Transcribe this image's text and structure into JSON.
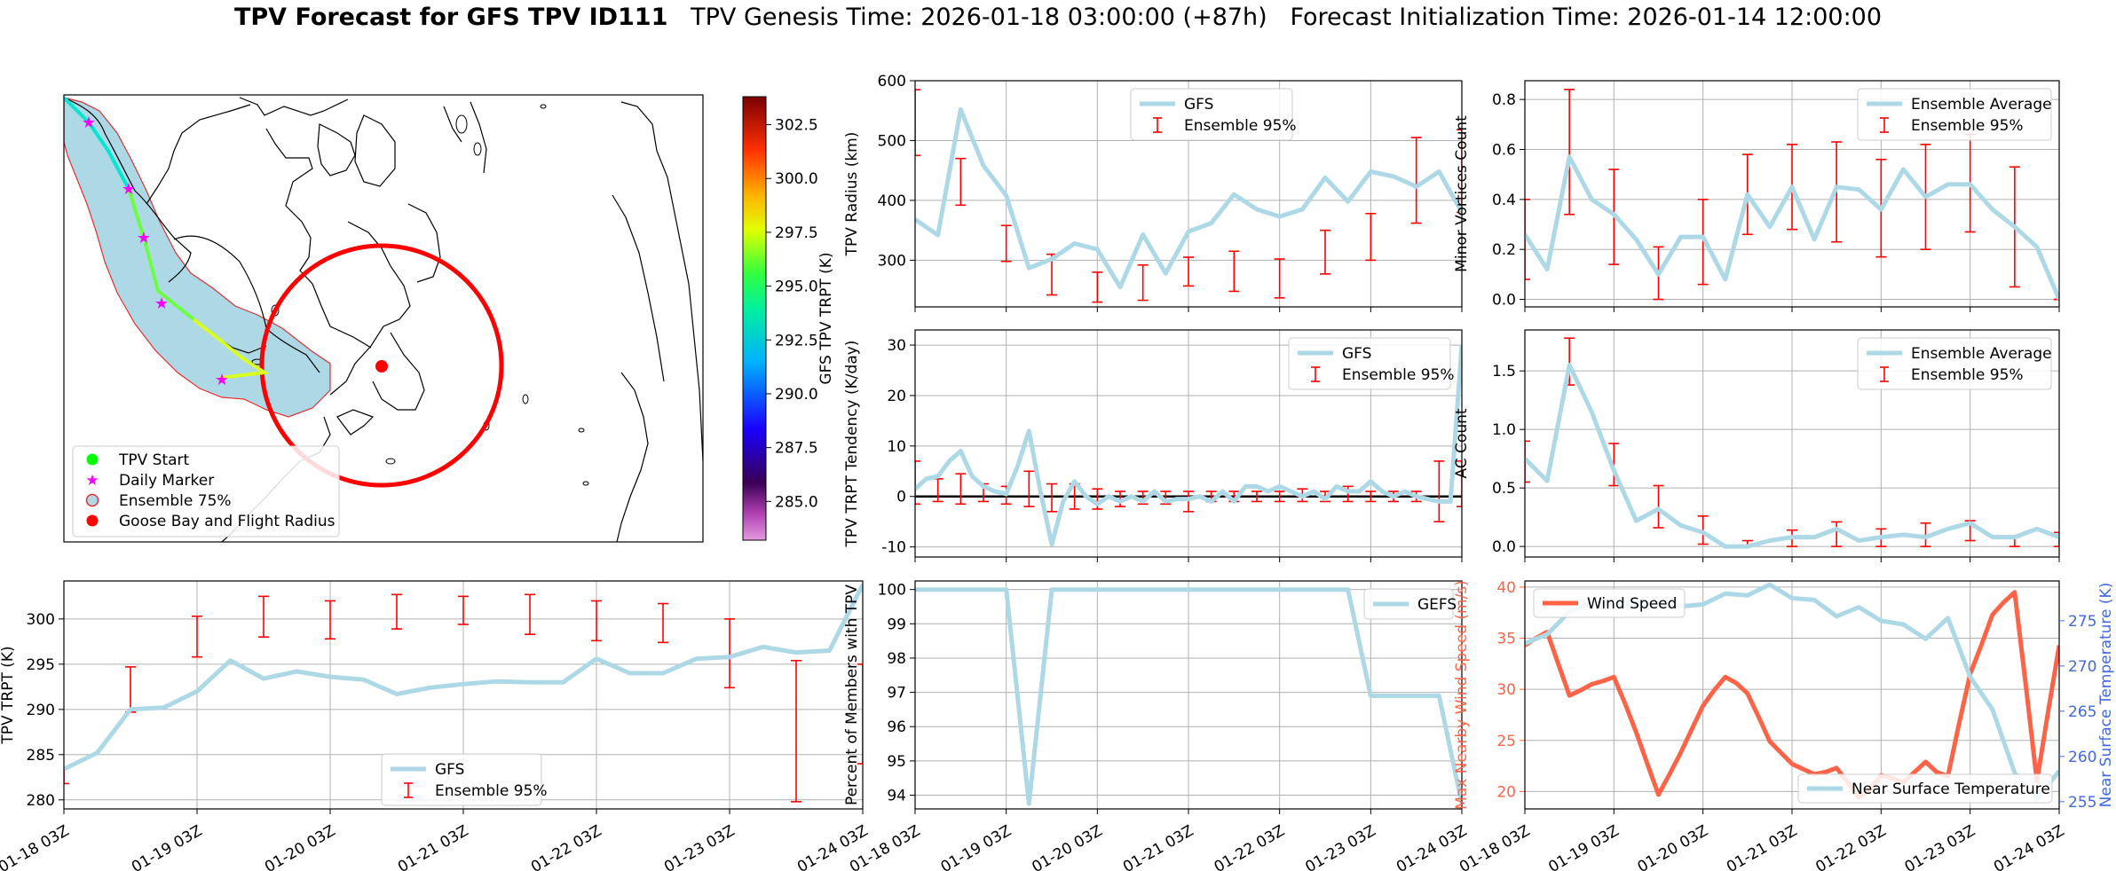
{
  "header": {
    "title_main": "TPV Forecast for GFS TPV ID111",
    "title_genesis": "TPV Genesis Time: 2026-01-18 03:00:00 (+87h)",
    "title_init": "Forecast Initialization Time: 2026-01-14 12:00:00"
  },
  "colors": {
    "gfs_line": "#add8e6",
    "ensemble_bar": "#ff0000",
    "wind_speed": "#ff6347",
    "near_surface": "#add8e6",
    "wind_axis": "#ff6347",
    "temp_axis": "#4169e1",
    "map_fill": "#add8e6",
    "map_edge": "#e33030"
  },
  "time_ticks": [
    "01-18 03Z",
    "01-19 03Z",
    "01-20 03Z",
    "01-21 03Z",
    "01-22 03Z",
    "01-23 03Z",
    "01-24 03Z"
  ],
  "map": {
    "colorbar_label": "GFS TPV TRPT (K)",
    "colorbar_ticks": [
      "302.5",
      "300.0",
      "297.5",
      "295.0",
      "292.5",
      "290.0",
      "287.5",
      "285.0"
    ],
    "legend": {
      "tpv_start": "TPV Start",
      "daily_marker": "Daily Marker",
      "ensemble_75": "Ensemble 75%",
      "goose_bay": "Goose Bay and Flight Radius"
    }
  },
  "chart_data": [
    {
      "id": "tpv_trpt",
      "type": "line",
      "ylabel": "TPV TRPT (K)",
      "xlim": [
        0,
        144
      ],
      "ylim": [
        279,
        304.2
      ],
      "yticks": [
        280,
        285,
        290,
        295,
        300
      ],
      "legend": [
        "GFS",
        "Ensemble 95%"
      ],
      "legend_loc": "lower-center",
      "series": [
        {
          "name": "GFS",
          "x": [
            0,
            6,
            12,
            18,
            24,
            30,
            36,
            42,
            48,
            54,
            60,
            66,
            72,
            78,
            84,
            90,
            96,
            102,
            108,
            114,
            120,
            126,
            132,
            138,
            144
          ],
          "y": [
            283.4,
            285.2,
            290.0,
            290.2,
            292.0,
            295.4,
            293.4,
            294.2,
            293.6,
            293.3,
            291.7,
            292.4,
            292.8,
            293.1,
            293.0,
            293.0,
            295.6,
            294.0,
            294.0,
            295.6,
            295.8,
            296.9,
            296.3,
            296.5,
            303.8
          ]
        }
      ],
      "error_bars": {
        "name": "Ensemble 95%",
        "x": [
          0,
          12,
          24,
          36,
          48,
          60,
          72,
          84,
          96,
          108,
          120,
          132,
          144
        ],
        "low": [
          281.8,
          289.7,
          295.8,
          298.0,
          297.8,
          298.9,
          299.4,
          298.3,
          297.6,
          297.4,
          292.4,
          279.8,
          284.0
        ],
        "high": [
          283.5,
          294.7,
          300.3,
          302.5,
          302.0,
          302.7,
          302.5,
          302.7,
          302.0,
          301.7,
          300.0,
          295.4,
          295.0
        ]
      }
    },
    {
      "id": "tpv_radius",
      "type": "line",
      "ylabel": "TPV Radius (km)",
      "xlim": [
        0,
        144
      ],
      "ylim": [
        222,
        600
      ],
      "yticks": [
        300,
        400,
        500,
        600
      ],
      "legend": [
        "GFS",
        "Ensemble 95%"
      ],
      "legend_loc": "upper-center",
      "series": [
        {
          "name": "GFS",
          "x": [
            0,
            6,
            12,
            18,
            24,
            30,
            36,
            42,
            48,
            54,
            60,
            66,
            72,
            78,
            84,
            90,
            96,
            102,
            108,
            114,
            120,
            126,
            132,
            138,
            144
          ],
          "y": [
            368,
            342,
            552,
            458,
            408,
            287,
            302,
            328,
            318,
            255,
            343,
            278,
            348,
            362,
            410,
            385,
            373,
            385,
            438,
            398,
            448,
            440,
            423,
            448,
            380
          ]
        }
      ],
      "error_bars": {
        "name": "Ensemble 95%",
        "x": [
          0,
          12,
          24,
          36,
          48,
          60,
          72,
          84,
          96,
          108,
          120,
          132,
          144
        ],
        "low": [
          475,
          392,
          298,
          242,
          230,
          233,
          257,
          248,
          237,
          277,
          300,
          362,
          380
        ],
        "high": [
          585,
          470,
          358,
          310,
          280,
          292,
          305,
          315,
          302,
          350,
          378,
          505,
          518
        ]
      }
    },
    {
      "id": "trpt_tendency",
      "type": "line",
      "ylabel": "TPV TRPT Tendency (K/day)",
      "xlim": [
        0,
        144
      ],
      "ylim": [
        -12,
        33
      ],
      "yticks": [
        -10,
        0,
        10,
        20,
        30
      ],
      "legend": [
        "GFS",
        "Ensemble 95%"
      ],
      "legend_loc": "upper-right",
      "series": [
        {
          "name": "GFS",
          "x": [
            0,
            3,
            6,
            9,
            12,
            15,
            18,
            21,
            24,
            27,
            30,
            33,
            36,
            39,
            42,
            45,
            48,
            51,
            54,
            57,
            60,
            63,
            66,
            69,
            72,
            75,
            78,
            81,
            84,
            87,
            90,
            93,
            96,
            99,
            102,
            105,
            108,
            111,
            114,
            117,
            120,
            123,
            126,
            129,
            132,
            135,
            138,
            141,
            144
          ],
          "y": [
            1.5,
            3.5,
            4,
            7,
            9,
            4,
            2,
            1,
            0.5,
            6,
            13,
            1,
            -9.5,
            -1,
            3,
            0,
            -1.5,
            0,
            -1,
            0,
            -1,
            1,
            -1,
            -0.5,
            -0.5,
            0,
            -1,
            1,
            -1,
            2,
            2,
            1,
            2,
            1,
            0,
            1,
            -0.5,
            2,
            1,
            1,
            3,
            1,
            0,
            1,
            0,
            -0.5,
            -1,
            -1,
            30
          ]
        }
      ],
      "zero_line": 0,
      "error_bars": {
        "name": "Ensemble 95%",
        "x": [
          0,
          6,
          12,
          18,
          24,
          30,
          36,
          42,
          48,
          54,
          60,
          66,
          72,
          78,
          84,
          90,
          96,
          102,
          108,
          114,
          120,
          126,
          132,
          138,
          144
        ],
        "low": [
          -1.5,
          -1,
          -1.5,
          -1,
          -1.5,
          -2,
          -3,
          -2.5,
          -2.5,
          -2,
          -1.5,
          -1.5,
          -3,
          -1,
          -1,
          -1,
          -1,
          -1,
          -1,
          -1,
          -1,
          -1,
          -1,
          -5,
          -2
        ],
        "high": [
          7,
          3.5,
          4.5,
          2.5,
          2,
          5,
          2.5,
          2.5,
          1.5,
          1,
          1,
          1,
          1,
          1,
          1,
          1,
          1,
          1.5,
          1,
          2,
          1,
          1,
          1,
          7,
          7
        ]
      }
    },
    {
      "id": "members_pct",
      "type": "line",
      "ylabel": "Percent of Members with TPV",
      "xlim": [
        0,
        144
      ],
      "ylim": [
        93.6,
        100.25
      ],
      "yticks": [
        94,
        95,
        96,
        97,
        98,
        99,
        100
      ],
      "legend": [
        "GEFS"
      ],
      "legend_loc": "upper-right",
      "series": [
        {
          "name": "GEFS",
          "x": [
            0,
            6,
            12,
            18,
            24,
            30,
            36,
            42,
            48,
            54,
            60,
            66,
            72,
            78,
            84,
            90,
            96,
            102,
            108,
            114,
            120,
            126,
            132,
            138,
            144
          ],
          "y": [
            100,
            100,
            100,
            100,
            100,
            93.75,
            100,
            100,
            100,
            100,
            100,
            100,
            100,
            100,
            100,
            100,
            100,
            100,
            100,
            100,
            96.9,
            96.9,
            96.9,
            96.9,
            93.75
          ]
        }
      ]
    },
    {
      "id": "minor_vortices",
      "type": "line",
      "ylabel": "Minor Vortices Count",
      "xlim": [
        0,
        144
      ],
      "ylim": [
        -0.03,
        0.875
      ],
      "yticks": [
        0.0,
        0.2,
        0.4,
        0.6,
        0.8
      ],
      "legend": [
        "Ensemble Average",
        "Ensemble 95%"
      ],
      "legend_loc": "upper-right",
      "series": [
        {
          "name": "Ensemble Average",
          "x": [
            0,
            6,
            12,
            18,
            24,
            30,
            36,
            42,
            48,
            54,
            60,
            66,
            72,
            78,
            84,
            90,
            96,
            102,
            108,
            114,
            120,
            126,
            132,
            138,
            144
          ],
          "y": [
            0.26,
            0.12,
            0.57,
            0.4,
            0.34,
            0.24,
            0.1,
            0.25,
            0.25,
            0.08,
            0.42,
            0.29,
            0.45,
            0.24,
            0.45,
            0.44,
            0.36,
            0.52,
            0.41,
            0.46,
            0.46,
            0.36,
            0.29,
            0.21,
            0.0
          ]
        }
      ],
      "error_bars": {
        "name": "Ensemble 95%",
        "x": [
          0,
          12,
          24,
          36,
          48,
          60,
          72,
          84,
          96,
          108,
          120,
          132,
          144
        ],
        "low": [
          0.08,
          0.34,
          0.14,
          0.0,
          0.06,
          0.26,
          0.28,
          0.23,
          0.17,
          0.2,
          0.27,
          0.05,
          0.0
        ],
        "high": [
          0.4,
          0.84,
          0.52,
          0.21,
          0.4,
          0.58,
          0.62,
          0.63,
          0.56,
          0.62,
          0.66,
          0.53,
          0.0
        ]
      }
    },
    {
      "id": "ac_count",
      "type": "line",
      "ylabel": "AC Count",
      "xlim": [
        0,
        144
      ],
      "ylim": [
        -0.09,
        1.85
      ],
      "yticks": [
        0.0,
        0.5,
        1.0,
        1.5
      ],
      "legend": [
        "Ensemble Average",
        "Ensemble 95%"
      ],
      "legend_loc": "upper-right",
      "series": [
        {
          "name": "Ensemble Average",
          "x": [
            0,
            6,
            12,
            18,
            24,
            30,
            36,
            42,
            48,
            54,
            60,
            66,
            72,
            78,
            84,
            90,
            96,
            102,
            108,
            114,
            120,
            126,
            132,
            138,
            144
          ],
          "y": [
            0.75,
            0.56,
            1.55,
            1.15,
            0.65,
            0.22,
            0.32,
            0.18,
            0.12,
            0.0,
            0.0,
            0.05,
            0.08,
            0.08,
            0.15,
            0.05,
            0.08,
            0.1,
            0.08,
            0.15,
            0.2,
            0.08,
            0.08,
            0.15,
            0.08
          ]
        }
      ],
      "error_bars": {
        "name": "Ensemble 95%",
        "x": [
          0,
          12,
          24,
          36,
          48,
          60,
          72,
          84,
          96,
          108,
          120,
          132,
          144
        ],
        "low": [
          0.55,
          1.38,
          0.52,
          0.16,
          0.02,
          0.0,
          0.0,
          0.0,
          0.0,
          0.0,
          0.05,
          0.0,
          0.0
        ],
        "high": [
          0.9,
          1.78,
          0.88,
          0.52,
          0.26,
          0.05,
          0.14,
          0.21,
          0.15,
          0.2,
          0.22,
          0.08,
          0.12
        ]
      }
    },
    {
      "id": "wind_temp",
      "type": "line",
      "ylabel": "Max Nearby Wind Speed (m/s)",
      "ylabel_right": "Near Surface Temperature (K)",
      "xlim": [
        0,
        144
      ],
      "ylim": [
        18.3,
        40.6
      ],
      "yticks": [
        20,
        25,
        30,
        35,
        40
      ],
      "ylim_right": [
        254.2,
        279.4
      ],
      "yticks_right": [
        255,
        260,
        265,
        270,
        275
      ],
      "legend": [
        "Wind Speed",
        "Near Surface Temperature"
      ],
      "series": [
        {
          "name": "Wind Speed",
          "axis": "left",
          "x": [
            0,
            3,
            6,
            9,
            12,
            15,
            18,
            21,
            24,
            27,
            30,
            33,
            36,
            39,
            42,
            45,
            48,
            51,
            54,
            57,
            60,
            63,
            66,
            69,
            72,
            75,
            78,
            81,
            84,
            87,
            90,
            93,
            96,
            99,
            102,
            105,
            108,
            111,
            114,
            117,
            120,
            123,
            126,
            129,
            132,
            135,
            138,
            141,
            144
          ],
          "y": [
            34.3,
            35.0,
            35.6,
            32.5,
            29.4,
            29.9,
            30.5,
            30.8,
            31.2,
            28.6,
            25.8,
            22.7,
            19.7,
            21.7,
            23.8,
            26.1,
            28.4,
            29.9,
            31.2,
            30.6,
            29.6,
            27.3,
            24.9,
            23.8,
            22.7,
            22.2,
            21.7,
            21.9,
            22.3,
            20.9,
            19.4,
            20.2,
            21.6,
            21.3,
            20.9,
            21.9,
            22.9,
            21.9,
            21.5,
            26.6,
            31.5,
            34.3,
            37.3,
            38.5,
            39.5,
            30.4,
            21.0,
            27.8,
            34.3
          ]
        },
        {
          "name": "Near Surface Temperature",
          "axis": "right",
          "x": [
            0,
            6,
            12,
            18,
            24,
            30,
            36,
            42,
            48,
            54,
            60,
            66,
            72,
            78,
            84,
            90,
            96,
            102,
            108,
            114,
            120,
            126,
            132,
            138,
            144
          ],
          "y": [
            272.5,
            273.5,
            276,
            277,
            276.8,
            277,
            276.8,
            276.6,
            276.8,
            278,
            277.8,
            279,
            277.5,
            277.3,
            275.5,
            276.5,
            275,
            274.6,
            273,
            275.3,
            268.8,
            265.2,
            258.2,
            255.3,
            258.4
          ]
        }
      ]
    }
  ]
}
